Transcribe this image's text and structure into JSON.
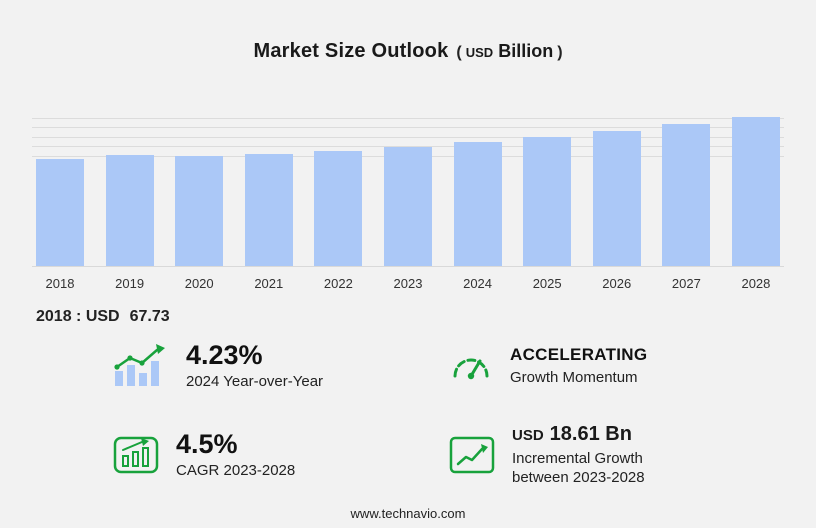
{
  "colors": {
    "bar": "#abc8f7",
    "green": "#18a23c",
    "grid": "#dcdcdc",
    "bg": "#f2f2f2"
  },
  "title": {
    "main": "Market Size Outlook",
    "open_paren": "(",
    "currency": "USD",
    "unit": "Billion",
    "close_paren": ")"
  },
  "chart_data": {
    "type": "bar",
    "title": "Market Size Outlook (USD Billion)",
    "categories": [
      "2018",
      "2019",
      "2020",
      "2021",
      "2022",
      "2023",
      "2024",
      "2025",
      "2026",
      "2027",
      "2028"
    ],
    "values": [
      67.73,
      70.2,
      69.4,
      70.9,
      72.9,
      75.58,
      78.78,
      82.0,
      85.6,
      89.8,
      94.19
    ],
    "xlabel": "",
    "ylabel": "USD Billion",
    "ylim": [
      0,
      95
    ],
    "gridlines": [
      70,
      76,
      82,
      88,
      94
    ],
    "legend": "none",
    "grid": "horizontal-top-only",
    "bar_color": "#abc8f7"
  },
  "annotation": {
    "label": "2018 : USD",
    "value": "67.73"
  },
  "stats": [
    {
      "id": "yoy",
      "icon": "bar-trend-icon",
      "value": "4.23%",
      "label": "2024 Year-over-Year"
    },
    {
      "id": "momentum",
      "icon": "gauge-icon",
      "title": "ACCELERATING",
      "label": "Growth Momentum"
    },
    {
      "id": "cagr",
      "icon": "cagr-chart-icon",
      "value": "4.5%",
      "label": "CAGR 2023-2028"
    },
    {
      "id": "incremental",
      "icon": "growth-steps-icon",
      "currency": "USD",
      "value": "18.61 Bn",
      "label_line1": "Incremental Growth",
      "label_line2": "between 2023-2028"
    }
  ],
  "footer": {
    "url": "www.technavio.com"
  }
}
